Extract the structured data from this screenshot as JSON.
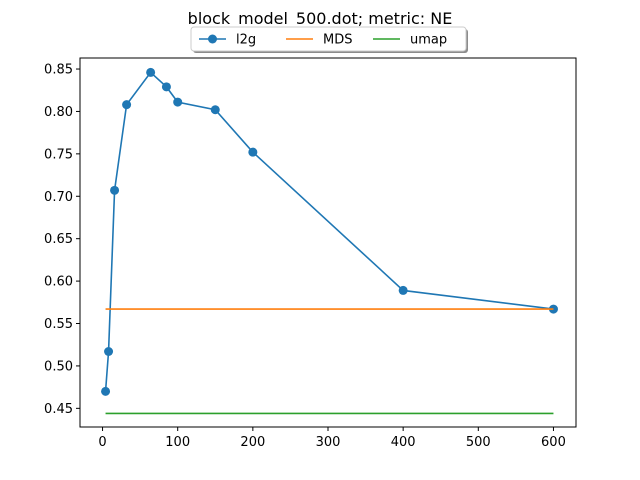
{
  "chart_data": {
    "type": "line",
    "title": "block_model_500.dot; metric: NE",
    "xlabel": "",
    "ylabel": "",
    "xlim": [
      -30,
      630
    ],
    "ylim": [
      0.428,
      0.863
    ],
    "xticks": [
      0,
      100,
      200,
      300,
      400,
      500,
      600
    ],
    "xtick_labels": [
      "0",
      "100",
      "200",
      "300",
      "400",
      "500",
      "600"
    ],
    "yticks": [
      0.45,
      0.5,
      0.55,
      0.6,
      0.65,
      0.7,
      0.75,
      0.8,
      0.85
    ],
    "ytick_labels": [
      "0.45",
      "0.50",
      "0.55",
      "0.60",
      "0.65",
      "0.70",
      "0.75",
      "0.80",
      "0.85"
    ],
    "grid": false,
    "legend": {
      "placement": "top-center above plot",
      "ncol": 3
    },
    "series": [
      {
        "name": "l2g",
        "color": "#1f77b4",
        "marker": "circle",
        "x": [
          4,
          8,
          16,
          32,
          64,
          85,
          100,
          150,
          200,
          400,
          600
        ],
        "y": [
          0.47,
          0.517,
          0.707,
          0.808,
          0.846,
          0.829,
          0.811,
          0.802,
          0.752,
          0.589,
          0.567
        ]
      },
      {
        "name": "MDS",
        "color": "#ff7f0e",
        "marker": "none",
        "x": [
          4,
          600
        ],
        "y": [
          0.567,
          0.567
        ]
      },
      {
        "name": "umap",
        "color": "#2ca02c",
        "marker": "none",
        "x": [
          4,
          600
        ],
        "y": [
          0.444,
          0.444
        ]
      }
    ]
  }
}
